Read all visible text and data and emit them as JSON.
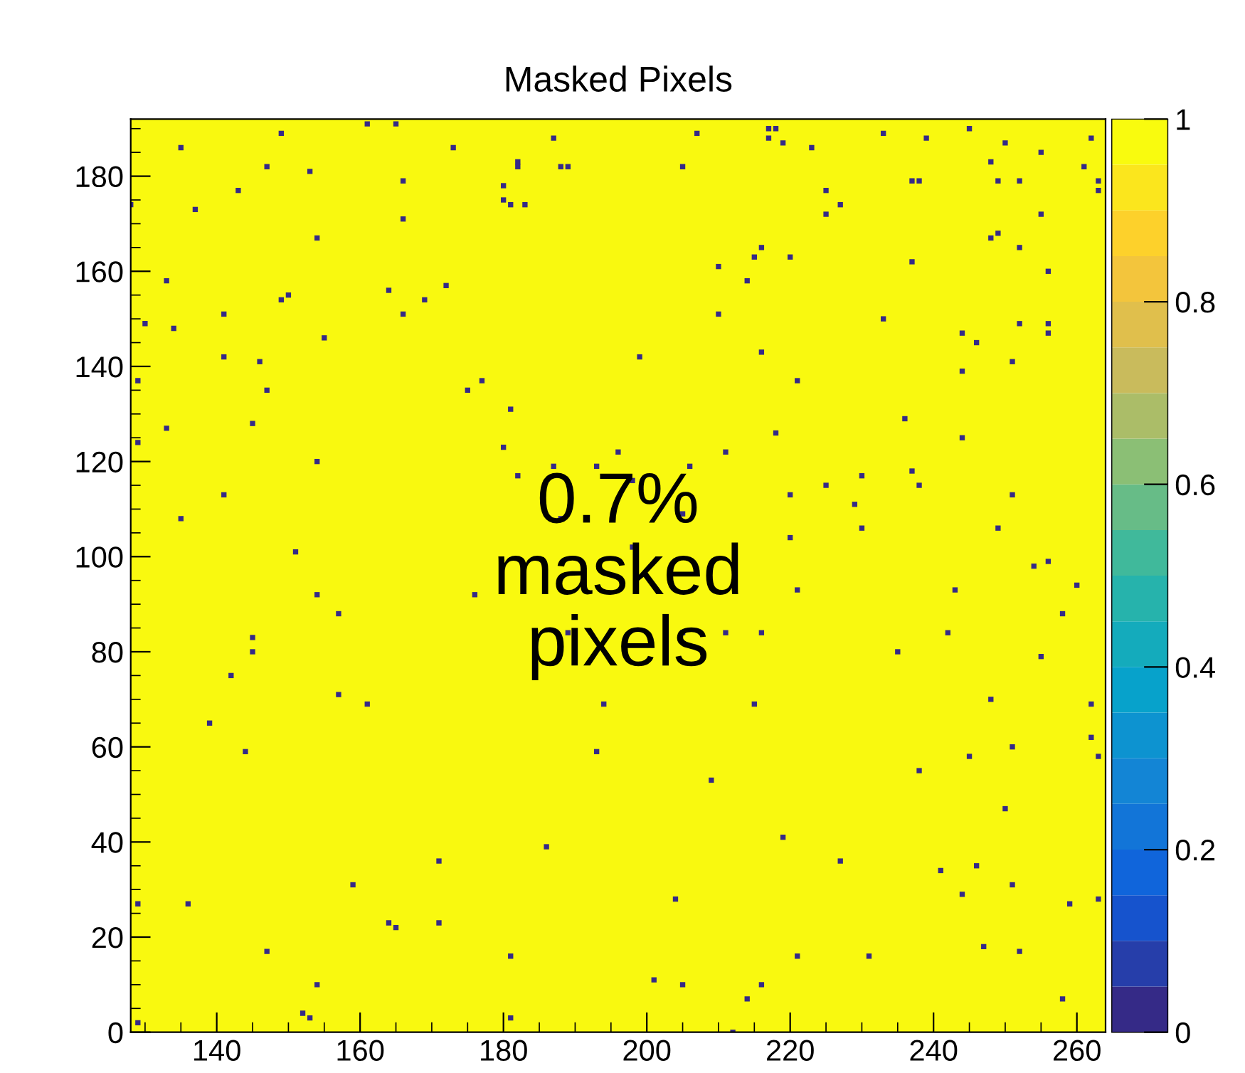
{
  "chart_data": {
    "type": "scatter",
    "title": "Masked Pixels",
    "annotations": [
      "0.7%\nmasked\npixels"
    ],
    "marker": "square",
    "xlim": [
      128,
      264
    ],
    "xticks": [
      140,
      160,
      180,
      200,
      220,
      240,
      260
    ],
    "ylim": [
      0,
      192
    ],
    "yticks": [
      0,
      20,
      40,
      60,
      80,
      100,
      120,
      140,
      160,
      180
    ],
    "clim": [
      0,
      1
    ],
    "cticks": [
      0,
      0.2,
      0.4,
      0.6,
      0.8,
      1
    ],
    "grid": false,
    "legend": false,
    "bands": [
      {
        "axis": "x",
        "from": 128,
        "to": 264,
        "color": "#f9f90f"
      }
    ],
    "x": [
      149,
      161,
      165,
      135,
      147,
      153,
      173,
      187,
      182,
      182,
      188,
      189,
      166,
      143,
      180,
      180,
      181,
      183,
      128,
      137,
      166,
      154,
      133,
      149,
      150,
      164,
      169,
      172,
      141,
      166,
      130,
      134,
      155,
      141,
      146,
      129,
      147,
      175,
      177,
      181,
      207,
      217,
      218,
      217,
      219,
      223,
      233,
      239,
      245,
      250,
      262,
      255,
      248,
      261,
      205,
      237,
      238,
      249,
      252,
      263,
      263,
      225,
      227,
      225,
      255,
      248,
      249,
      252,
      216,
      215,
      220,
      210,
      237,
      214,
      256,
      210,
      233,
      252,
      256,
      256,
      244,
      246,
      251,
      244,
      199,
      216,
      221,
      133,
      129,
      145,
      154,
      141,
      135,
      151,
      154,
      157,
      145,
      145,
      142,
      157,
      161,
      180,
      182,
      187,
      193,
      196,
      198,
      206,
      211,
      188,
      205,
      198,
      176,
      189,
      205,
      211,
      216,
      194,
      215,
      218,
      236,
      244,
      237,
      238,
      230,
      225,
      220,
      229,
      230,
      251,
      249,
      220,
      254,
      256,
      221,
      243,
      260,
      258,
      242,
      235,
      255,
      248,
      262,
      139,
      144,
      193,
      251,
      245,
      262,
      263,
      238,
      209,
      250,
      219,
      186,
      171,
      227,
      241,
      246,
      251,
      244,
      159,
      129,
      136,
      204,
      259,
      263,
      164,
      165,
      171,
      147,
      181,
      221,
      231,
      247,
      252,
      154,
      201,
      205,
      216,
      214,
      258,
      129,
      152,
      153,
      181,
      212
    ],
    "values": [
      189,
      191,
      191,
      186,
      182,
      181,
      186,
      188,
      183,
      182,
      182,
      182,
      179,
      177,
      178,
      175,
      174,
      174,
      174,
      173,
      171,
      167,
      158,
      154,
      155,
      156,
      154,
      157,
      151,
      151,
      149,
      148,
      146,
      142,
      141,
      137,
      135,
      135,
      137,
      131,
      189,
      190,
      190,
      188,
      187,
      186,
      189,
      188,
      190,
      187,
      188,
      185,
      183,
      182,
      182,
      179,
      179,
      179,
      179,
      179,
      177,
      177,
      174,
      172,
      172,
      167,
      168,
      165,
      165,
      163,
      163,
      161,
      162,
      158,
      160,
      151,
      150,
      149,
      149,
      147,
      147,
      145,
      141,
      139,
      142,
      143,
      137,
      127,
      124,
      128,
      120,
      113,
      108,
      101,
      92,
      88,
      83,
      80,
      75,
      71,
      69,
      123,
      117,
      119,
      119,
      122,
      116,
      119,
      122,
      108,
      109,
      102,
      92,
      84,
      84,
      84,
      84,
      69,
      69,
      126,
      129,
      125,
      118,
      115,
      117,
      115,
      113,
      111,
      106,
      113,
      106,
      104,
      98,
      99,
      93,
      93,
      94,
      88,
      84,
      80,
      79,
      70,
      69,
      65,
      59,
      59,
      60,
      58,
      62,
      58,
      55,
      53,
      47,
      41,
      39,
      36,
      36,
      34,
      35,
      31,
      29,
      31,
      27,
      27,
      28,
      27,
      28,
      23,
      22,
      23,
      17,
      16,
      16,
      16,
      18,
      17,
      10,
      11,
      10,
      10,
      7,
      7,
      2,
      4,
      3,
      3,
      0
    ],
    "cvalues": [
      0,
      0,
      0,
      0,
      0,
      0,
      0,
      0,
      0,
      0,
      0,
      0,
      0,
      0,
      0,
      0,
      0,
      0,
      0,
      0,
      0,
      0,
      0,
      0,
      0,
      0,
      0,
      0,
      0,
      0,
      0,
      0,
      0,
      0,
      0,
      0,
      0,
      0,
      0,
      0,
      0,
      0,
      0,
      0,
      0,
      0,
      0,
      0,
      0,
      0,
      0,
      0,
      0,
      0,
      0,
      0,
      0,
      0,
      0,
      0,
      0,
      0,
      0,
      0,
      0,
      0,
      0,
      0,
      0,
      0,
      0,
      0,
      0,
      0,
      0,
      0,
      0,
      0,
      0,
      0,
      0,
      0,
      0,
      0,
      0,
      0,
      0,
      0,
      0,
      0,
      0,
      0,
      0,
      0,
      0,
      0,
      0,
      0,
      0,
      0,
      0,
      0,
      0,
      0,
      0,
      0,
      0,
      0,
      0,
      0,
      0,
      0,
      0,
      0,
      0,
      0,
      0,
      0,
      0,
      0,
      0,
      0,
      0,
      0,
      0,
      0,
      0,
      0,
      0,
      0,
      0,
      0,
      0,
      0,
      0,
      0,
      0,
      0,
      0,
      0,
      0,
      0,
      0,
      0,
      0,
      0,
      0,
      0,
      0,
      0,
      0,
      0,
      0,
      0,
      0,
      0,
      0,
      0,
      0,
      0,
      0,
      0,
      0,
      0,
      0,
      0,
      0,
      0,
      0,
      0,
      0,
      0,
      0,
      0,
      0,
      0,
      0,
      0,
      0,
      0,
      0,
      0,
      0,
      0,
      0,
      0,
      0
    ]
  }
}
